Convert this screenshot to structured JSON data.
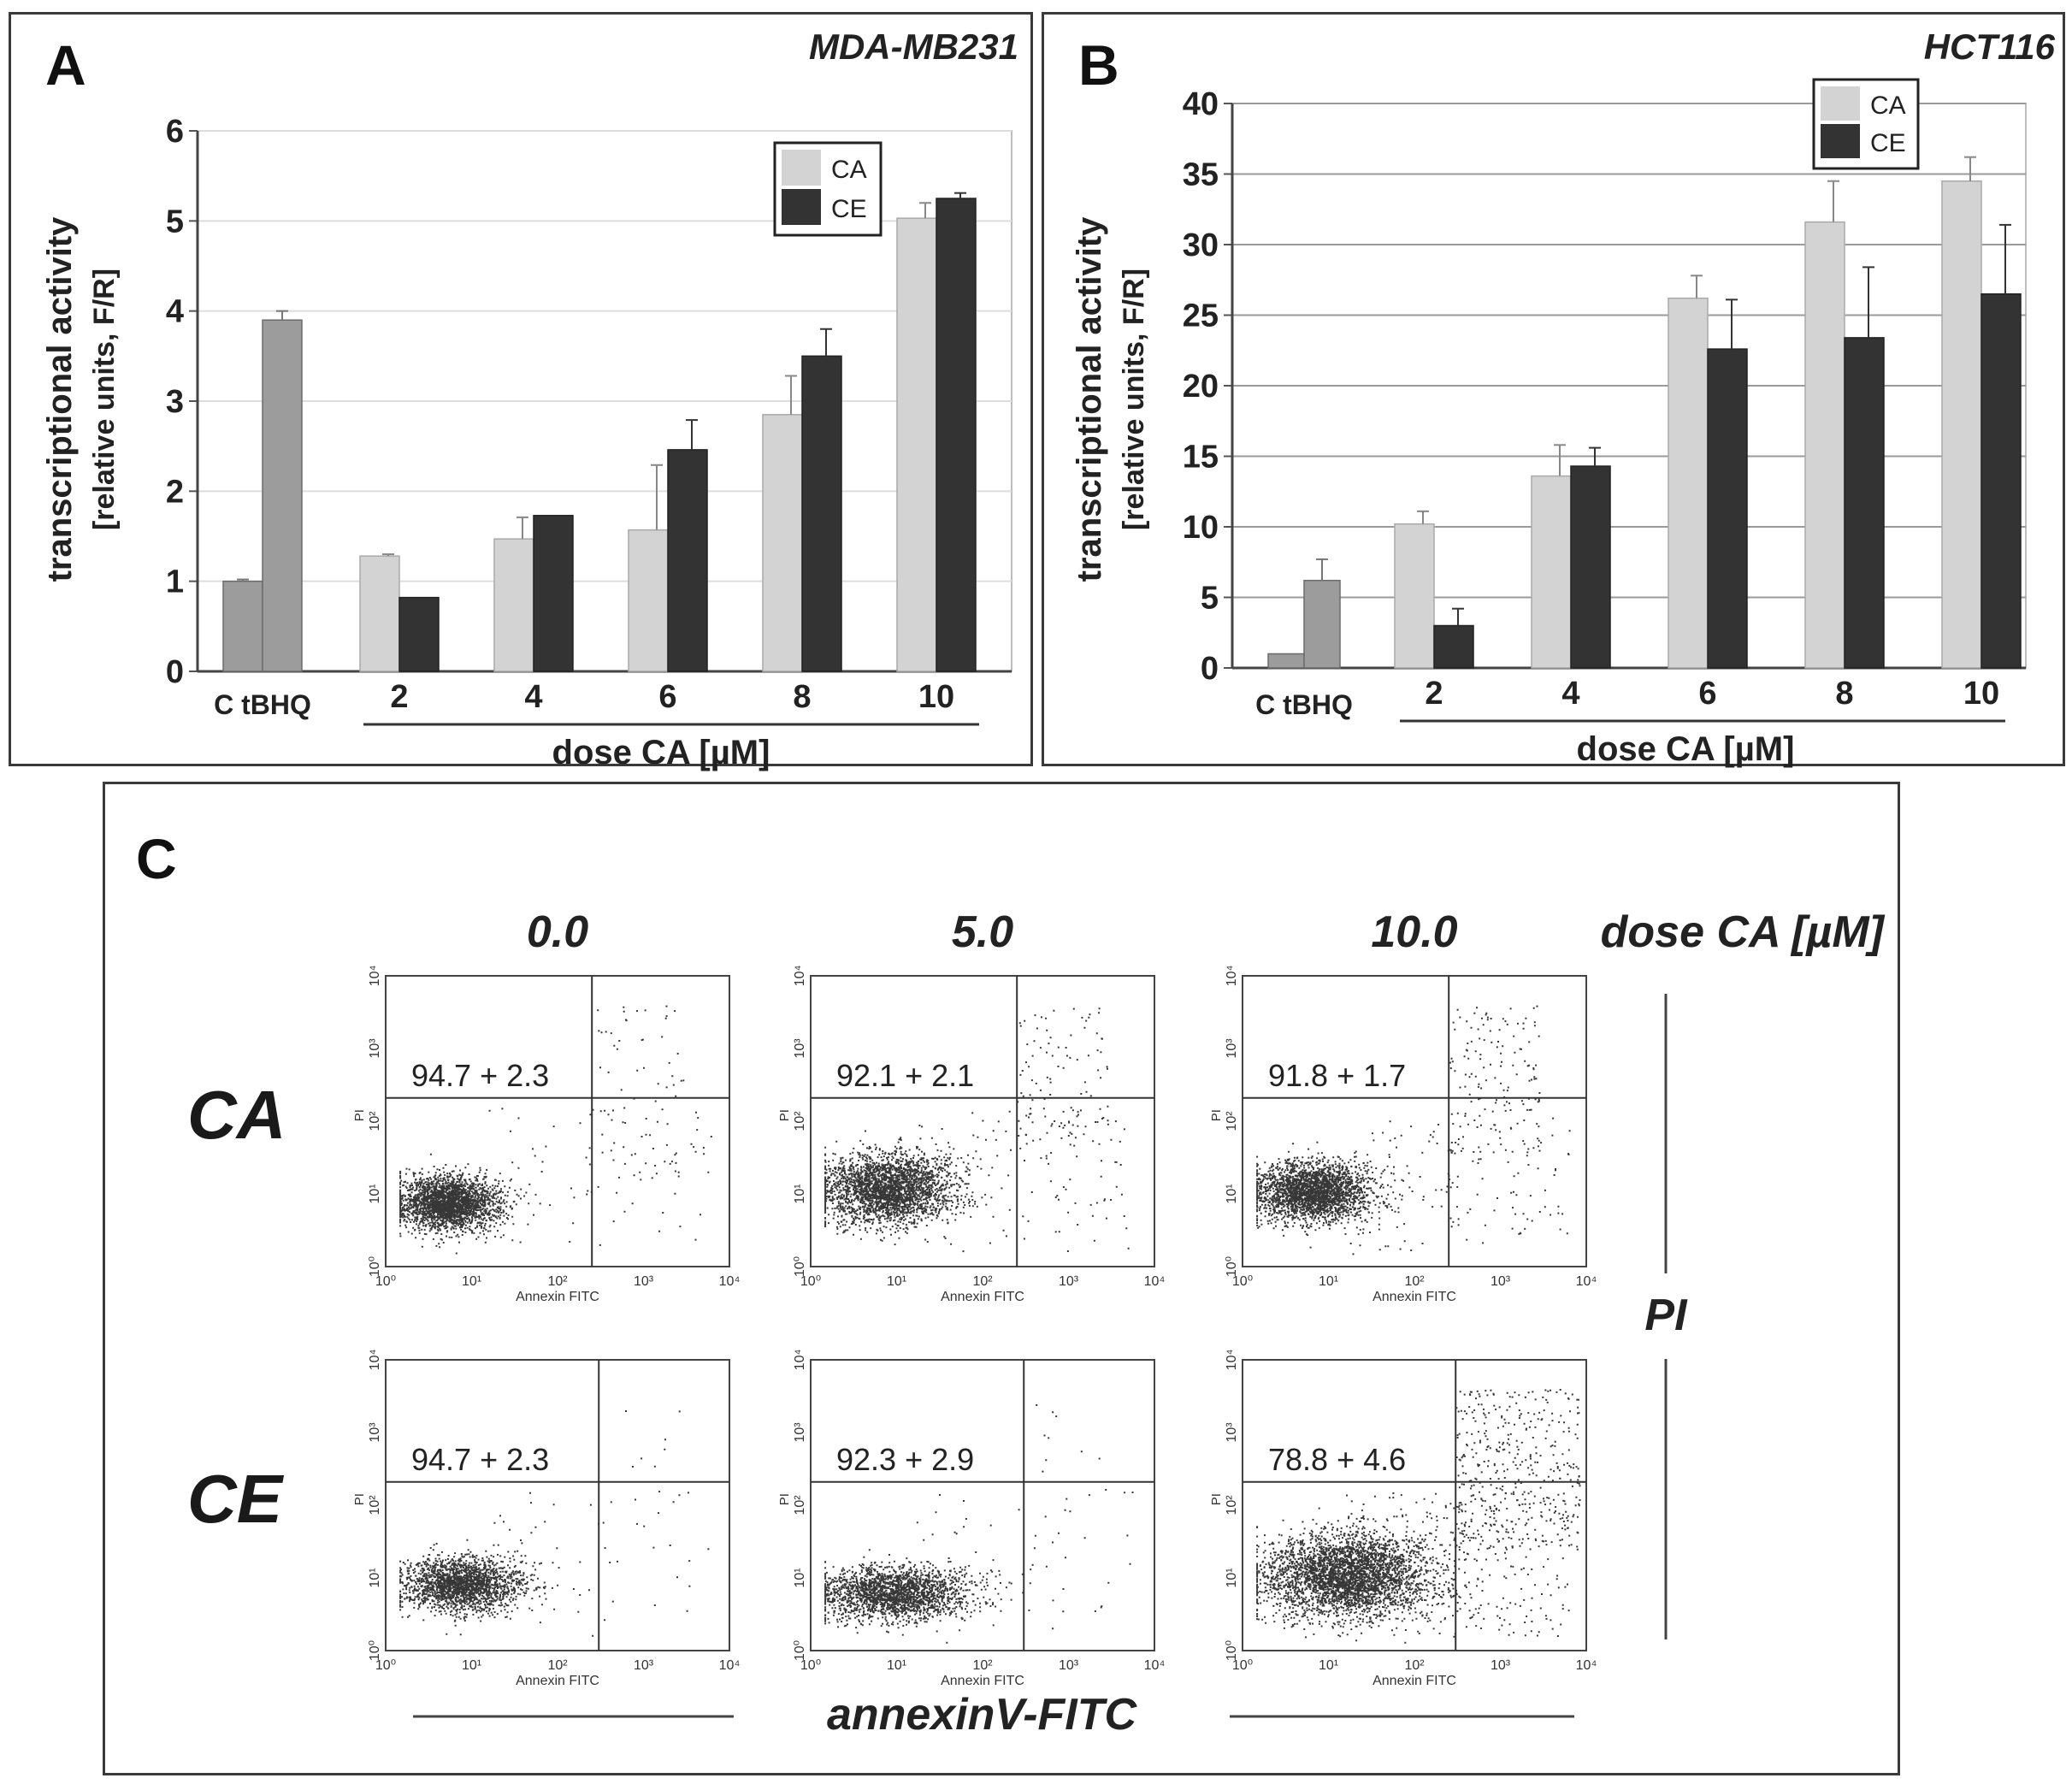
{
  "chart_data": [
    {
      "panel": "A",
      "type": "bar",
      "title": "MDA-MB231",
      "ylabel_line1": "transcriptional activity",
      "ylabel_line2": "[relative units, F/R]",
      "xlabel": "dose CA [µM]",
      "ylim": [
        0,
        6
      ],
      "yticks": [
        0,
        1,
        2,
        3,
        4,
        5,
        6
      ],
      "control_label": "C tBHQ",
      "controls": {
        "values": [
          1.0,
          3.9
        ],
        "errors": [
          0.02,
          0.1
        ],
        "color": "#9c9c9c"
      },
      "categories": [
        "2",
        "4",
        "6",
        "8",
        "10"
      ],
      "series": [
        {
          "name": "CA",
          "color": "#d3d3d3",
          "values": [
            1.28,
            1.47,
            1.57,
            2.85,
            5.03
          ],
          "errors": [
            0.02,
            0.24,
            0.72,
            0.43,
            0.17
          ]
        },
        {
          "name": "CE",
          "color": "#333333",
          "values": [
            0.82,
            1.73,
            2.46,
            3.5,
            5.25
          ],
          "errors": [
            0.0,
            0.0,
            0.33,
            0.3,
            0.06
          ]
        }
      ]
    },
    {
      "panel": "B",
      "type": "bar",
      "title": "HCT116",
      "ylabel_line1": "transcriptional activity",
      "ylabel_line2": "[relative units, F/R]",
      "xlabel": "dose CA [µM]",
      "ylim": [
        0,
        40
      ],
      "yticks": [
        0,
        5,
        10,
        15,
        20,
        25,
        30,
        35,
        40
      ],
      "control_label": "C tBHQ",
      "controls": {
        "values": [
          1.0,
          6.2
        ],
        "errors": [
          0.0,
          1.5
        ],
        "color": "#9c9c9c"
      },
      "categories": [
        "2",
        "4",
        "6",
        "8",
        "10"
      ],
      "series": [
        {
          "name": "CA",
          "color": "#d3d3d3",
          "values": [
            10.2,
            13.6,
            26.2,
            31.6,
            34.5
          ],
          "errors": [
            0.9,
            2.2,
            1.6,
            2.9,
            1.7
          ]
        },
        {
          "name": "CE",
          "color": "#333333",
          "values": [
            3.0,
            14.3,
            22.6,
            23.4,
            26.5
          ],
          "errors": [
            1.2,
            1.3,
            3.5,
            5.0,
            4.9
          ]
        }
      ]
    }
  ],
  "panel_labels": {
    "a": "A",
    "b": "B",
    "c": "C"
  },
  "flow": {
    "column_header": "dose CA [µM]",
    "doses": [
      "0.0",
      "5.0",
      "10.0"
    ],
    "rows": [
      "CA",
      "CE"
    ],
    "viability": [
      [
        "94.7 + 2.3",
        "92.1 + 2.1",
        "91.8 + 1.7"
      ],
      [
        "94.7 + 2.3",
        "92.3 + 2.9",
        "78.8 + 4.6"
      ]
    ],
    "x_axis_title": "Annexin FITC",
    "y_axis_title": "PI",
    "axis_ticks": [
      "10⁰",
      "10¹",
      "10²",
      "10³",
      "10⁴"
    ],
    "bottom_label": "annexinV-FITC",
    "side_label": "PI",
    "dot_color": "#141414"
  }
}
